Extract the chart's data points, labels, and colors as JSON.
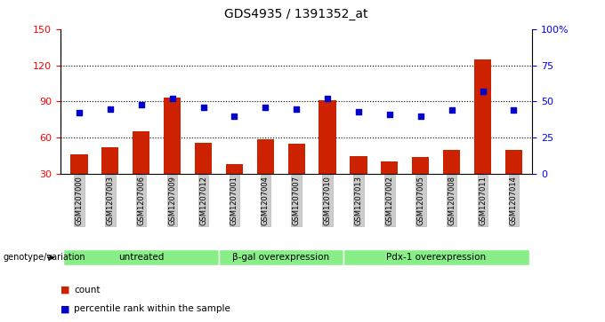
{
  "title": "GDS4935 / 1391352_at",
  "samples": [
    "GSM1207000",
    "GSM1207003",
    "GSM1207006",
    "GSM1207009",
    "GSM1207012",
    "GSM1207001",
    "GSM1207004",
    "GSM1207007",
    "GSM1207010",
    "GSM1207013",
    "GSM1207002",
    "GSM1207005",
    "GSM1207008",
    "GSM1207011",
    "GSM1207014"
  ],
  "counts": [
    46,
    52,
    65,
    93,
    56,
    38,
    59,
    55,
    91,
    45,
    40,
    44,
    50,
    125,
    50
  ],
  "percentiles": [
    42,
    45,
    48,
    52,
    46,
    40,
    46,
    45,
    52,
    43,
    41,
    40,
    44,
    57,
    44
  ],
  "groups": [
    {
      "label": "untreated",
      "start": 0,
      "end": 5
    },
    {
      "label": "β-gal overexpression",
      "start": 5,
      "end": 9
    },
    {
      "label": "Pdx-1 overexpression",
      "start": 9,
      "end": 15
    }
  ],
  "bar_color": "#cc2200",
  "dot_color": "#0000cc",
  "group_bg_color": "#88ee88",
  "tick_bg_color": "#cccccc",
  "ylim_left": [
    30,
    150
  ],
  "ylim_right": [
    0,
    100
  ],
  "yticks_left": [
    30,
    60,
    90,
    120,
    150
  ],
  "yticks_right": [
    0,
    25,
    50,
    75,
    100
  ],
  "ytick_labels_left": [
    "30",
    "60",
    "90",
    "120",
    "150"
  ],
  "ytick_labels_right": [
    "0",
    "25",
    "50",
    "75",
    "100%"
  ],
  "legend_count_label": "count",
  "legend_percentile_label": "percentile rank within the sample",
  "genotype_label": "genotype/variation",
  "fig_width": 6.8,
  "fig_height": 3.63,
  "dpi": 100
}
